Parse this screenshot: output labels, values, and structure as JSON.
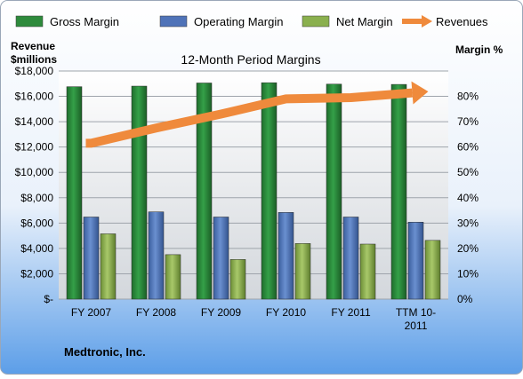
{
  "chart_data": {
    "type": "bar",
    "title": "12-Month Period Margins",
    "company": "Medtronic, Inc.",
    "categories": [
      "FY 2007",
      "FY 2008",
      "FY 2009",
      "FY 2010",
      "FY 2011",
      "TTM 10-2011"
    ],
    "category_lines": [
      [
        "FY 2007"
      ],
      [
        "FY 2008"
      ],
      [
        "FY 2009"
      ],
      [
        "FY 2010"
      ],
      [
        "FY 2011"
      ],
      [
        "TTM 10-",
        "2011"
      ]
    ],
    "series": [
      {
        "name": "Gross Margin",
        "axis": "right",
        "color": "#2e8b3c",
        "values": [
          74.5,
          74.7,
          75.8,
          75.9,
          75.4,
          75.3
        ]
      },
      {
        "name": "Operating Margin",
        "axis": "right",
        "color": "#4f73b8",
        "values": [
          28.8,
          30.6,
          28.8,
          30.4,
          28.8,
          27.0
        ]
      },
      {
        "name": "Net Margin",
        "axis": "right",
        "color": "#8ab04e",
        "values": [
          22.9,
          15.6,
          13.9,
          19.5,
          19.3,
          20.6
        ]
      },
      {
        "name": "Revenues",
        "axis": "left",
        "type": "line",
        "color": "#ef8a3c",
        "values": [
          12300,
          13500,
          14600,
          15800,
          15900,
          16300
        ]
      }
    ],
    "ylabel_left": [
      "Revenue",
      "$millions"
    ],
    "ylabel_right": "Margin %",
    "ylim_left": [
      0,
      18000
    ],
    "ylim_right": [
      0,
      80
    ],
    "yticks_left": [
      "$-",
      "$2,000",
      "$4,000",
      "$6,000",
      "$8,000",
      "$10,000",
      "$12,000",
      "$14,000",
      "$16,000",
      "$18,000"
    ],
    "yticks_right": [
      "0%",
      "10%",
      "20%",
      "30%",
      "40%",
      "50%",
      "60%",
      "70%",
      "80%"
    ],
    "grid": true,
    "legend_position": "top"
  }
}
